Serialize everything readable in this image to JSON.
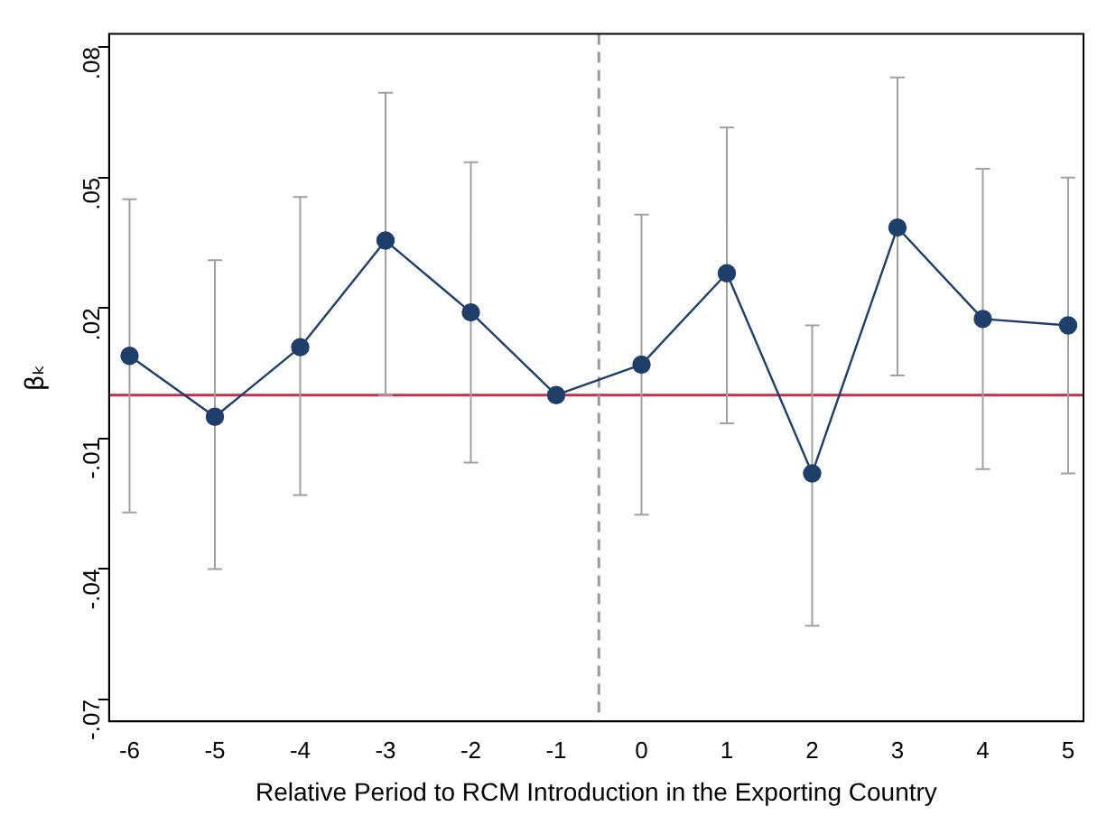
{
  "chart_data": {
    "type": "line",
    "xlabel": "Relative Period to RCM Introduction in the Exporting Country",
    "ylabel": "βₖ",
    "x": [
      -6,
      -5,
      -4,
      -3,
      -2,
      -1,
      0,
      1,
      2,
      3,
      4,
      5
    ],
    "series": [
      {
        "color": "#1f3f6a",
        "values": [
          0.009,
          -0.005,
          0.011,
          0.0355,
          0.019,
          0.0,
          0.007,
          0.028,
          -0.018,
          0.0385,
          0.0175,
          0.016
        ],
        "errors": [
          [
            -0.027,
            0.045
          ],
          [
            -0.04,
            0.031
          ],
          [
            -0.023,
            0.0455
          ],
          [
            0.0,
            0.0695
          ],
          [
            -0.0155,
            0.0535
          ],
          null,
          [
            -0.0275,
            0.0415
          ],
          [
            -0.0065,
            0.0615
          ],
          [
            -0.053,
            0.016
          ],
          [
            0.0045,
            0.073
          ],
          [
            -0.017,
            0.052
          ],
          [
            -0.018,
            0.05
          ]
        ]
      }
    ],
    "marker": "circle",
    "line_style": "solid",
    "grid": false,
    "legend": false,
    "xlim": [
      -6.24,
      5.18
    ],
    "xticks": [
      -6,
      -5,
      -4,
      -3,
      -2,
      -1,
      0,
      1,
      2,
      3,
      4,
      5
    ],
    "ylim": [
      -0.075,
      0.083
    ],
    "yticks": [
      {
        "value": -0.07,
        "label": "-.07"
      },
      {
        "value": -0.04,
        "label": "-.04"
      },
      {
        "value": -0.01,
        "label": "-.01"
      },
      {
        "value": 0.02,
        "label": ".02"
      },
      {
        "value": 0.05,
        "label": ".05"
      },
      {
        "value": 0.08,
        "label": ".08"
      }
    ],
    "ref_lines": [
      {
        "axis": "y",
        "value": 0,
        "color": "#c0304f",
        "line_style": "solid"
      },
      {
        "axis": "x",
        "value": -0.5,
        "color": "#999999",
        "line_style": "dashed"
      }
    ]
  }
}
